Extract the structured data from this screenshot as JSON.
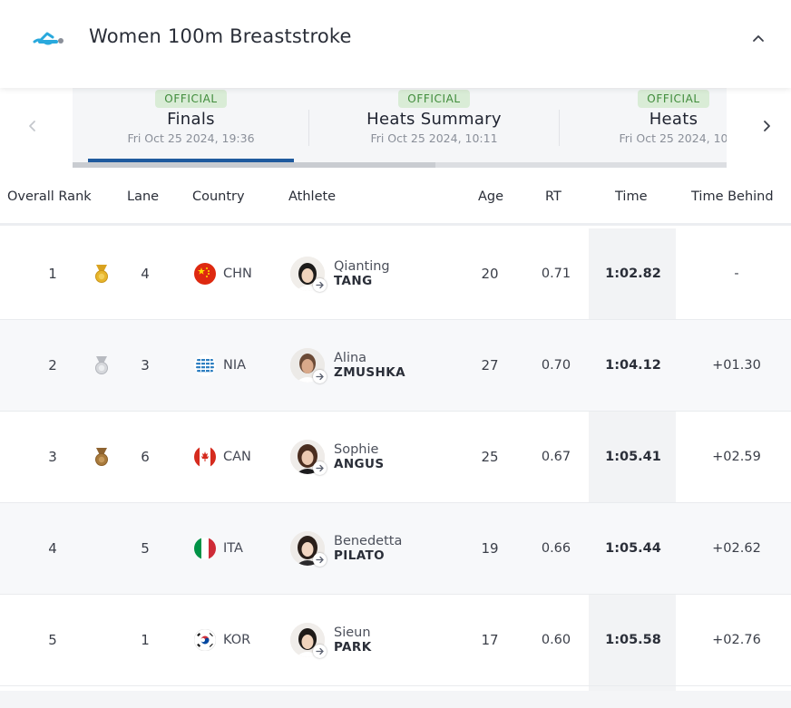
{
  "header": {
    "title": "Women 100m Breaststroke",
    "icon": "swimmer-icon",
    "collapse_icon": "chevron-up-icon"
  },
  "tabs": [
    {
      "badge": "OFFICIAL",
      "label": "Finals",
      "date": "Fri Oct 25 2024, 19:36",
      "active": true
    },
    {
      "badge": "OFFICIAL",
      "label": "Heats Summary",
      "date": "Fri Oct 25 2024, 10:11",
      "active": false
    },
    {
      "badge": "OFFICIAL",
      "label": "Heats",
      "date": "Fri Oct 25 2024, 10",
      "active": false
    }
  ],
  "nav": {
    "prev_icon": "chevron-left-icon",
    "next_icon": "chevron-right-icon"
  },
  "columns": [
    "Overall Rank",
    "Lane",
    "Country",
    "Athlete",
    "Age",
    "RT",
    "Time",
    "Time Behind"
  ],
  "rows": [
    {
      "rank": "1",
      "medal": "gold",
      "lane": "4",
      "country": "CHN",
      "first": "Qianting",
      "last": "TANG",
      "age": "20",
      "rt": "0.71",
      "time": "1:02.82",
      "behind": "-"
    },
    {
      "rank": "2",
      "medal": "silver",
      "lane": "3",
      "country": "NIA",
      "first": "Alina",
      "last": "ZMUSHKA",
      "age": "27",
      "rt": "0.70",
      "time": "1:04.12",
      "behind": "+01.30"
    },
    {
      "rank": "3",
      "medal": "bronze",
      "lane": "6",
      "country": "CAN",
      "first": "Sophie",
      "last": "ANGUS",
      "age": "25",
      "rt": "0.67",
      "time": "1:05.41",
      "behind": "+02.59"
    },
    {
      "rank": "4",
      "medal": "",
      "lane": "5",
      "country": "ITA",
      "first": "Benedetta",
      "last": "PILATO",
      "age": "19",
      "rt": "0.66",
      "time": "1:05.44",
      "behind": "+02.62"
    },
    {
      "rank": "5",
      "medal": "",
      "lane": "1",
      "country": "KOR",
      "first": "Sieun",
      "last": "PARK",
      "age": "17",
      "rt": "0.60",
      "time": "1:05.58",
      "behind": "+02.76"
    }
  ],
  "colors": {
    "accent": "#1f5a9e",
    "brand": "#29a9dd",
    "official_bg": "#d9ecd6",
    "official_text": "#3f8b3a",
    "gold": "#e7b52b",
    "silver": "#c9cbd0",
    "bronze": "#a87a3c"
  }
}
